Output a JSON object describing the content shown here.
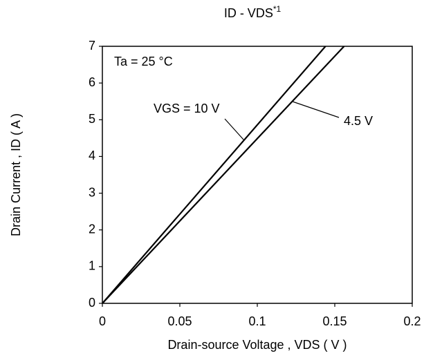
{
  "chart_data": {
    "type": "line",
    "title": "ID - VDS",
    "title_superscript": "*1",
    "x_label": "Drain-source Voltage , VDS ( V )",
    "y_label": "Drain Current , ID ( A )",
    "annotation": "Ta = 25 °C",
    "series": [
      {
        "name": "VGS = 10 V",
        "color": "#000000",
        "x": [
          0,
          0.144
        ],
        "values": [
          0,
          7
        ]
      },
      {
        "name": "4.5 V",
        "color": "#000000",
        "x": [
          0,
          0.156
        ],
        "values": [
          0,
          7
        ]
      }
    ],
    "xlim": [
      0,
      0.2
    ],
    "xticks": [
      0,
      0.05,
      0.1,
      0.15,
      0.2
    ],
    "ylim": [
      0,
      7
    ],
    "yticks": [
      0,
      1,
      2,
      3,
      4,
      5,
      6,
      7
    ],
    "grid": false
  }
}
